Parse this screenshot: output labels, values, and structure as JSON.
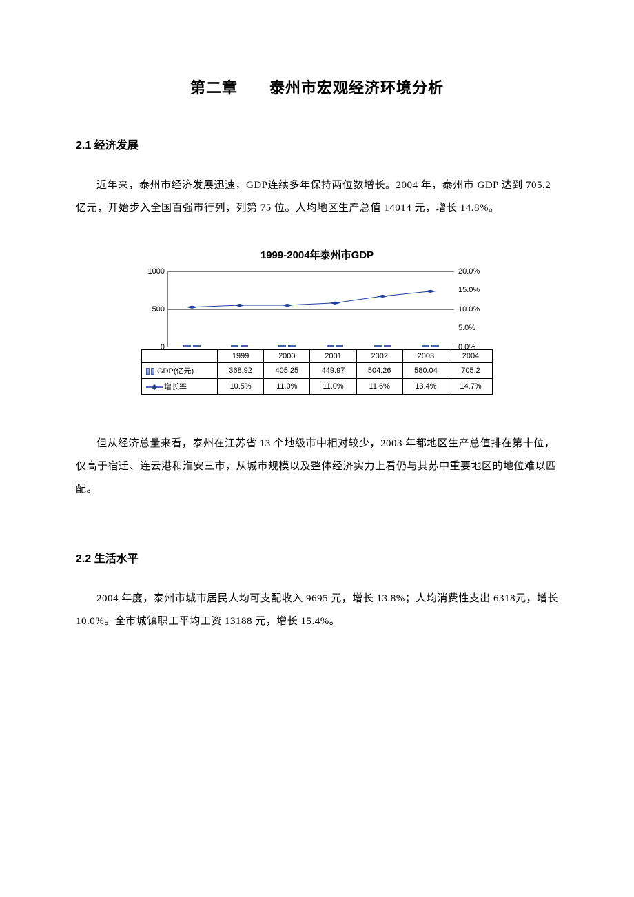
{
  "chapter_title": "第二章　　泰州市宏观经济环境分析",
  "section21": {
    "title": "2.1 经济发展",
    "para1": "近年来，泰州市经济发展迅速，GDP连续多年保持两位数增长。2004 年，泰州市 GDP 达到 705.2 亿元，开始步入全国百强市行列，列第 75 位。人均地区生产总值 14014 元，增长 14.8%。",
    "para2": "但从经济总量来看，泰州在江苏省 13 个地级市中相对较少，2003 年都地区生产总值排在第十位，仅高于宿迁、连云港和淮安三市，从城市规模以及整体经济实力上看仍与其苏中重要地区的地位难以匹配。"
  },
  "section22": {
    "title": "2.2 生活水平",
    "para1": "2004 年度，泰州市城市居民人均可支配收入 9695 元，增长 13.8%；人均消费性支出 6318元，增长 10.0%。全市城镇职工平均工资 13188 元，增长 15.4%。"
  },
  "chart": {
    "title": "1999-2004年泰州市GDP",
    "type": "bar+line",
    "categories": [
      "1999",
      "2000",
      "2001",
      "2002",
      "2003",
      "2004"
    ],
    "series_bar": {
      "label": "GDP(亿元)",
      "values": [
        368.92,
        405.25,
        449.97,
        504.26,
        580.04,
        705.2
      ],
      "color_gradient_top": "#b8c6f0",
      "color_gradient_bottom": "#7a8fd8",
      "border_color": "#4a5fa8",
      "bar_pair": true
    },
    "series_line": {
      "label": "增长率",
      "values_pct": [
        10.5,
        11.0,
        11.0,
        11.6,
        13.4,
        14.7
      ],
      "display": [
        "10.5%",
        "11.0%",
        "11.0%",
        "11.6%",
        "13.4%",
        "14.7%"
      ],
      "line_color": "#1f3f9a",
      "marker": "diamond",
      "marker_color": "#1f3f9a"
    },
    "y_left": {
      "min": 0,
      "max": 1000,
      "ticks": [
        0,
        500,
        1000
      ]
    },
    "y_right": {
      "min": 0,
      "max": 20,
      "ticks": [
        "0.0%",
        "5.0%",
        "10.0%",
        "15.0%",
        "20.0%"
      ]
    },
    "grid_color": "#808080",
    "background_color": "#ffffff",
    "title_fontsize": 15,
    "tick_fontsize": 11
  }
}
